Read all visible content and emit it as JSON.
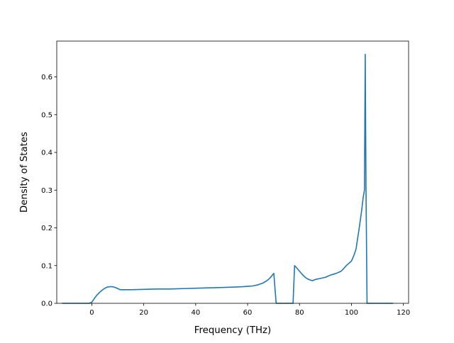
{
  "chart_data": {
    "type": "line",
    "title": "",
    "xlabel": "Frequency (THz)",
    "ylabel": "Density of States",
    "xlim": [
      -13.5,
      122
    ],
    "ylim": [
      0,
      0.695
    ],
    "xticks": [
      0,
      20,
      40,
      60,
      80,
      100,
      120
    ],
    "yticks": [
      0.0,
      0.1,
      0.2,
      0.3,
      0.4,
      0.5,
      0.6
    ],
    "xtick_labels": [
      "0",
      "20",
      "40",
      "60",
      "80",
      "100",
      "120"
    ],
    "ytick_labels": [
      "0.0",
      "0.1",
      "0.2",
      "0.3",
      "0.4",
      "0.5",
      "0.6"
    ],
    "grid": false,
    "legend": "none",
    "colors": {
      "line": "#1f77b4",
      "axes": "#000000",
      "background": "#ffffff"
    },
    "series": [
      {
        "x": [
          -11.5,
          -1,
          0,
          1,
          2,
          3,
          4,
          5,
          6,
          7,
          8,
          9,
          10,
          11,
          15,
          20,
          25,
          30,
          35,
          40,
          45,
          50,
          55,
          58,
          60,
          62,
          64,
          66,
          67,
          68,
          69,
          70,
          70.1,
          71,
          75,
          77.5,
          78.1,
          79,
          80,
          81,
          82,
          83,
          84,
          85,
          86,
          88,
          90,
          91,
          92,
          94,
          96,
          97,
          98,
          99,
          100,
          100.5,
          101,
          101.8,
          102,
          103,
          104,
          104.5,
          105,
          105.3,
          105.6,
          106,
          110,
          116
        ],
        "y": [
          0,
          0,
          0.003,
          0.013,
          0.022,
          0.029,
          0.035,
          0.04,
          0.043,
          0.044,
          0.044,
          0.042,
          0.039,
          0.036,
          0.036,
          0.037,
          0.038,
          0.038,
          0.039,
          0.04,
          0.041,
          0.042,
          0.043,
          0.044,
          0.045,
          0.046,
          0.049,
          0.054,
          0.058,
          0.063,
          0.07,
          0.079,
          0.079,
          0.0,
          0.0,
          0.0,
          0.1,
          0.093,
          0.085,
          0.077,
          0.07,
          0.065,
          0.062,
          0.06,
          0.063,
          0.066,
          0.069,
          0.072,
          0.075,
          0.079,
          0.085,
          0.092,
          0.1,
          0.106,
          0.112,
          0.12,
          0.128,
          0.145,
          0.155,
          0.2,
          0.25,
          0.28,
          0.3,
          0.66,
          0.3,
          0.0,
          0.0,
          0.0
        ]
      }
    ]
  }
}
